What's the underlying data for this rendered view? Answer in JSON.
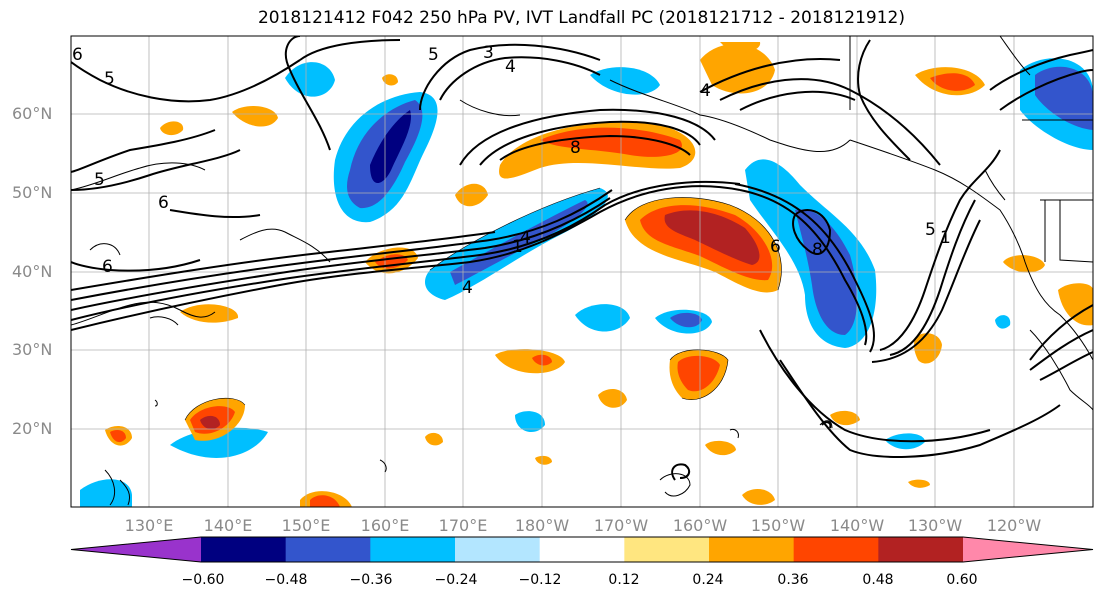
{
  "title": "2018121412 F042 250 hPa PV, IVT Landfall PC (2018121712 - 2018121912)",
  "lat_labels": [
    "60°N",
    "50°N",
    "40°N",
    "30°N",
    "20°N"
  ],
  "lon_labels": [
    "130°E",
    "140°E",
    "150°E",
    "160°E",
    "170°E",
    "180°W",
    "170°W",
    "160°W",
    "150°W",
    "140°W",
    "130°W",
    "120°W"
  ],
  "contour_labels": [
    "6",
    "5",
    "5",
    "6",
    "6",
    "3",
    "4",
    "5",
    "4",
    "8",
    "4",
    "6",
    "8",
    "1",
    "4",
    "1",
    "5"
  ],
  "colorbar": {
    "ticks": [
      "−0.60",
      "−0.48",
      "−0.36",
      "−0.24",
      "−0.12",
      "0.12",
      "0.24",
      "0.36",
      "0.48",
      "0.60"
    ],
    "colors": [
      "#9933cc",
      "#000080",
      "#3355cc",
      "#00bfff",
      "#b3e6ff",
      "#ffffff",
      "#ffe680",
      "#ffa500",
      "#ff4500",
      "#b22222",
      "#ff88aa"
    ]
  },
  "colors": {
    "neg_dark": "#000080",
    "neg_mid": "#3355cc",
    "neg_light": "#00bfff",
    "neg_pale": "#b3e6ff",
    "pos_pale": "#ffe680",
    "pos_light": "#ffa500",
    "pos_mid": "#ff4500",
    "pos_dark": "#b22222"
  }
}
